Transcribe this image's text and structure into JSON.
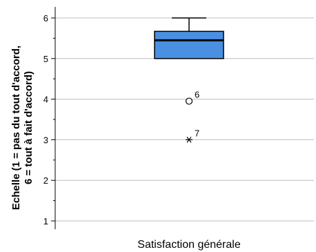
{
  "chart_data": {
    "type": "boxplot",
    "ylabel_line1": "Echelle (1 = pas du tout d'accord,",
    "ylabel_line2": "6 = tout à fait d'accord)",
    "categories": [
      "Satisfaction générale"
    ],
    "ylim": [
      0.8,
      6.2
    ],
    "yticks": [
      1,
      2,
      3,
      4,
      5,
      6
    ],
    "grid": true,
    "box": {
      "min": 5.0,
      "q1": 5.0,
      "median": 5.45,
      "q3": 5.67,
      "max": 6.0,
      "fill": "#4a90e2"
    },
    "outliers": [
      {
        "value": 3.95,
        "label": "6",
        "marker": "circle"
      },
      {
        "value": 3.0,
        "label": "7",
        "marker": "star"
      }
    ]
  }
}
